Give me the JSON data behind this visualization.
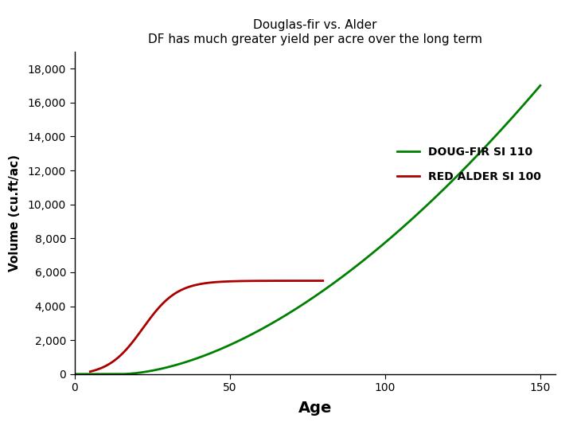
{
  "title_line1": "Douglas-fir vs. Alder",
  "title_line2": "DF has much greater yield per acre over the long term",
  "xlabel": "Age",
  "ylabel": "Volume (cu.ft/ac)",
  "xlim": [
    0,
    155
  ],
  "ylim": [
    0,
    19000
  ],
  "xticks": [
    0,
    50,
    100,
    150
  ],
  "yticks": [
    0,
    2000,
    4000,
    6000,
    8000,
    10000,
    12000,
    14000,
    16000,
    18000
  ],
  "df_color": "#008000",
  "alder_color": "#AA0000",
  "df_label": "DOUG-FIR SI 110",
  "alder_label": "RED ALDER SI 100",
  "background_color": "#ffffff",
  "title_fontsize": 11,
  "xlabel_fontsize": 14,
  "ylabel_fontsize": 11,
  "tick_fontsize": 10,
  "legend_fontsize": 10
}
